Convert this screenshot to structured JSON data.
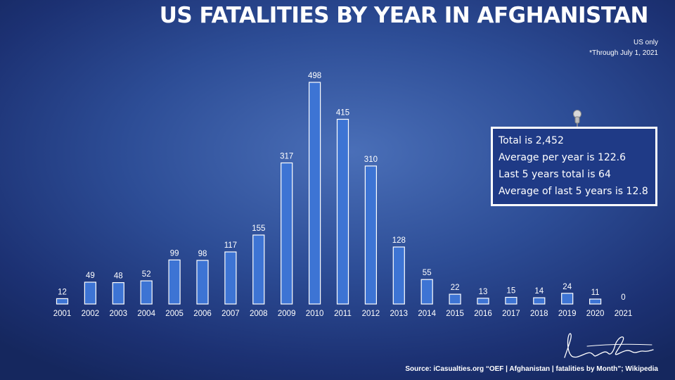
{
  "header": {
    "title": "US FATALITIES BY YEAR IN AFGHANISTAN",
    "note_line1": "US only",
    "note_line2": "*Through July 1, 2021"
  },
  "callout": {
    "line1": "Total is 2,452",
    "line2": "Average per year is 122.6",
    "line3": "Last 5 years total is 64",
    "line4": "Average of last 5 years is 12.8"
  },
  "footer": {
    "source": "Source: iCasualties.org “OEF | Afghanistan | fatalities by Month”; Wikipedia"
  },
  "icons": {
    "pin": "pushpin-icon",
    "signature": "signature-icon"
  },
  "colors": {
    "bar": "#3d74d4",
    "bar_stroke": "#ffffff",
    "callout_bg": "#1f3a86"
  },
  "chart_data": {
    "type": "bar",
    "title": "US FATALITIES BY YEAR IN AFGHANISTAN",
    "categories": [
      "2001",
      "2002",
      "2003",
      "2004",
      "2005",
      "2006",
      "2007",
      "2008",
      "2009",
      "2010",
      "2011",
      "2012",
      "2013",
      "2014",
      "2015",
      "2016",
      "2017",
      "2018",
      "2019",
      "2020",
      "2021"
    ],
    "values": [
      12,
      49,
      48,
      52,
      99,
      98,
      117,
      155,
      317,
      498,
      415,
      310,
      128,
      55,
      22,
      13,
      15,
      14,
      24,
      11,
      0
    ],
    "ylim": [
      0,
      498
    ],
    "grid": false,
    "legend": "none"
  }
}
